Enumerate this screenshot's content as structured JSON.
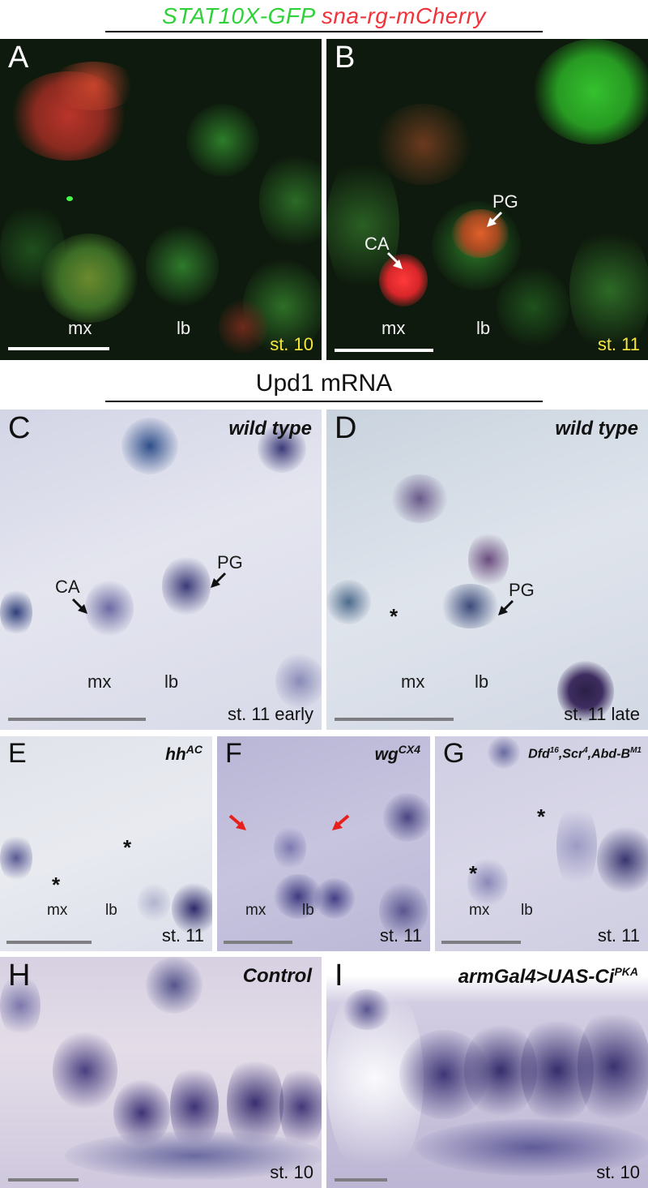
{
  "header_top": {
    "green_text": "STAT10X-GFP",
    "red_text": "sna-rg-mCherry"
  },
  "header_mid": {
    "text": "Upd1 mRNA"
  },
  "panels": {
    "A": {
      "letter": "A",
      "mx": "mx",
      "lb": "lb",
      "stage": "st. 10"
    },
    "B": {
      "letter": "B",
      "ca": "CA",
      "pg": "PG",
      "mx": "mx",
      "lb": "lb",
      "stage": "st. 11"
    },
    "C": {
      "letter": "C",
      "genotype": "wild type",
      "ca": "CA",
      "pg": "PG",
      "mx": "mx",
      "lb": "lb",
      "stage": "st. 11 early"
    },
    "D": {
      "letter": "D",
      "genotype": "wild type",
      "pg": "PG",
      "asterisk": "*",
      "mx": "mx",
      "lb": "lb",
      "stage": "st. 11 late"
    },
    "E": {
      "letter": "E",
      "genotype_base": "hh",
      "genotype_sup": "AC",
      "asterisk": "*",
      "mx": "mx",
      "lb": "lb",
      "stage": "st. 11"
    },
    "F": {
      "letter": "F",
      "genotype_base": "wg",
      "genotype_sup": "CX4",
      "mx": "mx",
      "lb": "lb",
      "stage": "st. 11"
    },
    "G": {
      "letter": "G",
      "g1": "Dfd",
      "g1_sup": "16",
      "g2": ",Scr",
      "g2_sup": "4",
      "g3": ",Abd-B",
      "g3_sup": "M1",
      "asterisk": "*",
      "mx": "mx",
      "lb": "lb",
      "stage": "st. 11"
    },
    "H": {
      "letter": "H",
      "genotype": "Control",
      "stage": "st. 10"
    },
    "I": {
      "letter": "I",
      "genotype_base": "armGal4>UAS-Ci",
      "genotype_sup": "PKA",
      "stage": "st. 10"
    }
  },
  "colors": {
    "gfp": "#2fd13a",
    "mcherry": "#f0333a",
    "stage_fluor": "#f6e73a",
    "brightfield_bg": "#d9dcea",
    "stain": "#3b3a78",
    "arrow_red": "#e8201c"
  }
}
